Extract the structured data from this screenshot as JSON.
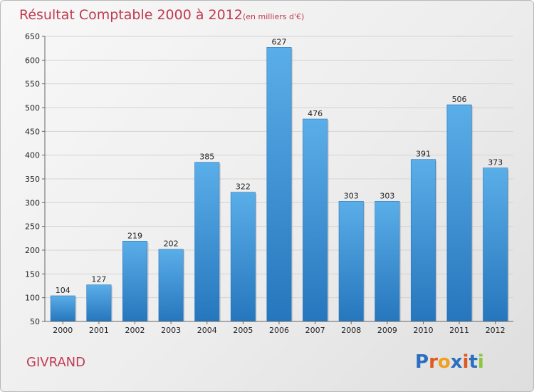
{
  "chart_data": {
    "type": "bar",
    "title": "Résultat Comptable 2000 à 2012",
    "subtitle": "(en milliers d'€)",
    "categories": [
      "2000",
      "2001",
      "2002",
      "2003",
      "2004",
      "2005",
      "2006",
      "2007",
      "2008",
      "2009",
      "2010",
      "2011",
      "2012"
    ],
    "values": [
      104,
      127,
      219,
      202,
      385,
      322,
      627,
      476,
      303,
      303,
      391,
      506,
      373
    ],
    "ylim": [
      50,
      650
    ],
    "yticks": [
      50,
      100,
      150,
      200,
      250,
      300,
      350,
      400,
      450,
      500,
      550,
      600,
      650
    ],
    "grid": true,
    "bar_color": "#3a8fd6"
  },
  "footer": {
    "commune": "GIVRAND",
    "logo_letters": [
      {
        "ch": "P",
        "color": "#2b6fc0"
      },
      {
        "ch": "r",
        "color": "#e05a1e"
      },
      {
        "ch": "o",
        "color": "#f0a020"
      },
      {
        "ch": "x",
        "color": "#2b6fc0"
      },
      {
        "ch": "i",
        "color": "#e05a1e"
      },
      {
        "ch": "t",
        "color": "#2b6fc0"
      },
      {
        "ch": "i",
        "color": "#8cc63f"
      }
    ]
  }
}
